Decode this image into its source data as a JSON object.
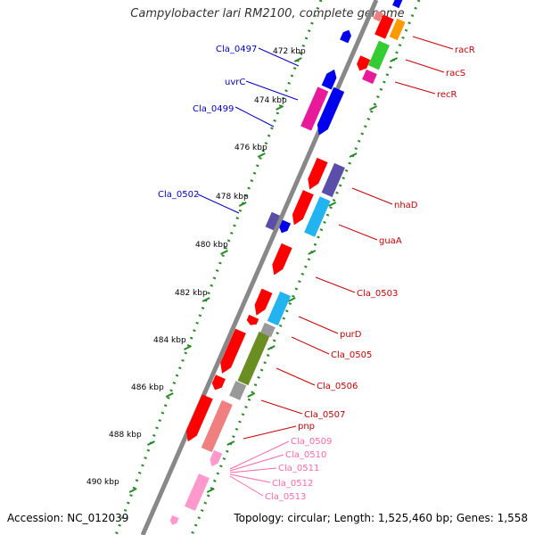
{
  "title": "Campylobacter lari RM2100, complete genome",
  "footer": {
    "accession": "Accession: NC_012039",
    "summary": "Topology: circular; Length: 1,525,460 bp; Genes: 1,558"
  },
  "colors": {
    "cds_red": "#ff0000",
    "magenta": "#e8199a",
    "blue": "#0000ee",
    "slate": "#5a4ea8",
    "cyan": "#22b4f0",
    "olive": "#6b8e23",
    "green": "#33cc33",
    "orange": "#ff9900",
    "grey": "#999999",
    "pale_red": "#f08080",
    "pink": "#ff99cc",
    "backbone": "#888888",
    "ticks": "#228b22",
    "label_blue": "#0000cc",
    "label_red": "#cc0000",
    "label_pink": "#ff66aa"
  },
  "ticks": [
    "472 kbp",
    "474 kbp",
    "476 kbp",
    "478 kbp",
    "480 kbp",
    "482 kbp",
    "484 kbp",
    "486 kbp",
    "488 kbp",
    "490 kbp"
  ],
  "labels_left": [
    "Cla_0497",
    "uvrC",
    "Cla_0499",
    "Cla_0502"
  ],
  "labels_right": [
    "racR",
    "racS",
    "recR",
    "nhaD",
    "guaA",
    "Cla_0503",
    "purD",
    "Cla_0505",
    "Cla_0506",
    "Cla_0507",
    "pnp"
  ],
  "labels_pink": [
    "Cla_0509",
    "Cla_0510",
    "Cla_0511",
    "Cla_0512",
    "Cla_0513"
  ]
}
